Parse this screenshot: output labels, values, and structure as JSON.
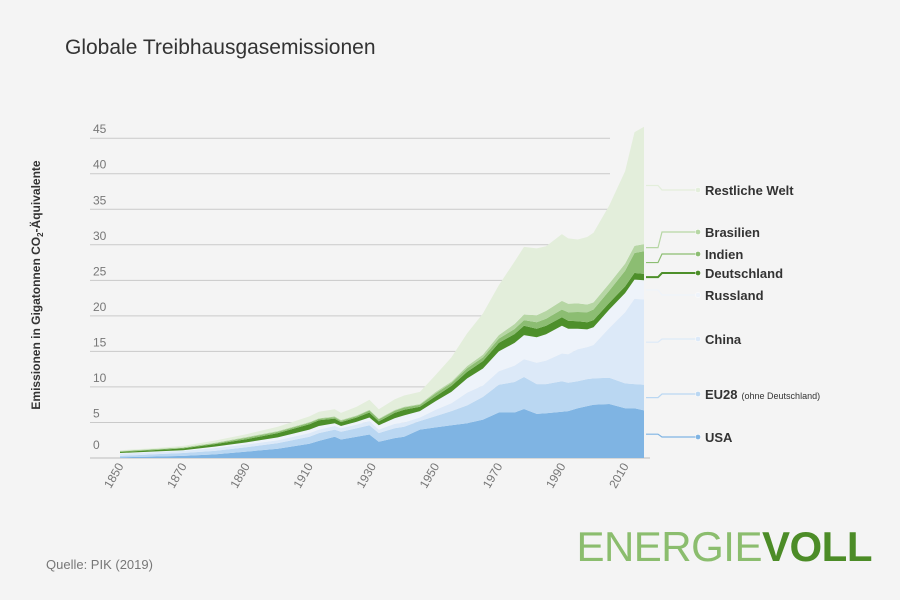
{
  "title": "Globale Treibhausgasemissionen",
  "source": "Quelle: PIK (2019)",
  "brand": {
    "part1": "ENERGIE",
    "part2": "VOLL"
  },
  "chart_data": {
    "type": "area",
    "stacked": true,
    "ylabel_main": "Emissionen in Gigatonnen CO",
    "ylabel_sub": "2",
    "ylabel_tail": "-Äquivalente",
    "ylim": [
      0,
      47
    ],
    "yticks": [
      "0",
      "5",
      "10",
      "15",
      "20",
      "25",
      "30",
      "35",
      "40",
      "45"
    ],
    "yticks_values": [
      0,
      5,
      10,
      15,
      20,
      25,
      30,
      35,
      40,
      45
    ],
    "xlim": [
      1850,
      2016
    ],
    "xticks": [
      "1850",
      "1870",
      "1890",
      "1910",
      "1930",
      "1950",
      "1970",
      "1990",
      "2010"
    ],
    "xticks_values": [
      1850,
      1870,
      1890,
      1910,
      1930,
      1950,
      1970,
      1990,
      2010
    ],
    "x": [
      1850,
      1860,
      1870,
      1880,
      1890,
      1900,
      1910,
      1913,
      1918,
      1920,
      1925,
      1929,
      1932,
      1937,
      1940,
      1945,
      1950,
      1955,
      1960,
      1965,
      1970,
      1975,
      1978,
      1982,
      1985,
      1990,
      1992,
      1995,
      1998,
      2000,
      2005,
      2010,
      2013,
      2016
    ],
    "series": [
      {
        "name": "USA",
        "label": "USA",
        "color": "#7fb4e3",
        "values": [
          0.1,
          0.2,
          0.3,
          0.5,
          0.9,
          1.3,
          2.0,
          2.4,
          3.0,
          2.6,
          3.0,
          3.3,
          2.3,
          2.8,
          3.0,
          4.0,
          4.3,
          4.6,
          4.9,
          5.4,
          6.4,
          6.4,
          6.9,
          6.2,
          6.3,
          6.5,
          6.6,
          7.0,
          7.3,
          7.5,
          7.6,
          7.0,
          7.0,
          6.7
        ]
      },
      {
        "name": "EU28",
        "label": "EU28",
        "label_small": "(ohne Deutschland)",
        "color": "#bad7f2",
        "values": [
          0.2,
          0.3,
          0.4,
          0.5,
          0.6,
          0.8,
          1.0,
          1.1,
          1.0,
          1.1,
          1.2,
          1.3,
          1.2,
          1.4,
          1.4,
          1.2,
          1.6,
          2.0,
          2.5,
          3.2,
          3.9,
          4.3,
          4.5,
          4.2,
          4.1,
          4.3,
          4.0,
          3.8,
          3.8,
          3.7,
          3.7,
          3.5,
          3.4,
          3.6
        ]
      },
      {
        "name": "China",
        "label": "China",
        "color": "#dce9f8",
        "values": [
          0.3,
          0.3,
          0.3,
          0.4,
          0.4,
          0.4,
          0.5,
          0.5,
          0.5,
          0.5,
          0.5,
          0.6,
          0.5,
          0.6,
          0.6,
          0.5,
          0.9,
          1.1,
          1.8,
          1.6,
          1.9,
          2.3,
          2.5,
          3.0,
          3.3,
          3.9,
          4.0,
          4.5,
          4.5,
          4.7,
          7.0,
          10.0,
          12.0,
          12.0
        ]
      },
      {
        "name": "Russland",
        "label": "Russland",
        "color": "#eef3fa",
        "values": [
          0.1,
          0.1,
          0.1,
          0.2,
          0.3,
          0.4,
          0.5,
          0.5,
          0.4,
          0.3,
          0.4,
          0.5,
          0.6,
          0.8,
          1.0,
          0.9,
          1.2,
          1.6,
          2.0,
          2.4,
          2.8,
          3.2,
          3.4,
          3.6,
          3.7,
          3.9,
          3.6,
          2.9,
          2.5,
          2.5,
          2.6,
          2.7,
          2.7,
          2.7
        ]
      },
      {
        "name": "Deutschland",
        "label": "Deutschland",
        "color": "#4d8f2a",
        "values": [
          0.15,
          0.2,
          0.25,
          0.35,
          0.45,
          0.6,
          0.75,
          0.8,
          0.65,
          0.55,
          0.6,
          0.7,
          0.55,
          0.75,
          0.8,
          0.6,
          0.7,
          0.85,
          0.95,
          1.05,
          1.2,
          1.25,
          1.3,
          1.2,
          1.2,
          1.2,
          1.1,
          1.05,
          1.0,
          1.0,
          0.95,
          0.95,
          0.95,
          0.9
        ]
      },
      {
        "name": "Indien",
        "label": "Indien",
        "color": "#8cbd72",
        "values": [
          0.1,
          0.1,
          0.1,
          0.1,
          0.2,
          0.2,
          0.2,
          0.2,
          0.2,
          0.2,
          0.2,
          0.3,
          0.3,
          0.3,
          0.3,
          0.3,
          0.4,
          0.4,
          0.5,
          0.5,
          0.6,
          0.7,
          0.8,
          0.9,
          1.0,
          1.1,
          1.2,
          1.3,
          1.4,
          1.5,
          1.7,
          2.2,
          2.8,
          3.2
        ]
      },
      {
        "name": "Brasilien",
        "label": "Brasilien",
        "color": "#b6d6a4",
        "values": [
          0.05,
          0.05,
          0.05,
          0.1,
          0.1,
          0.1,
          0.1,
          0.1,
          0.1,
          0.1,
          0.1,
          0.1,
          0.1,
          0.1,
          0.1,
          0.1,
          0.2,
          0.2,
          0.3,
          0.4,
          0.5,
          0.7,
          0.8,
          1.0,
          1.1,
          1.2,
          1.2,
          1.2,
          1.1,
          1.0,
          1.0,
          1.0,
          1.0,
          1.0
        ]
      },
      {
        "name": "Restliche Welt",
        "label": "Restliche Welt",
        "color": "#e3eedb",
        "values": [
          0.1,
          0.1,
          0.2,
          0.3,
          0.4,
          0.6,
          0.8,
          0.9,
          1.0,
          1.0,
          1.2,
          1.4,
          1.3,
          1.5,
          1.6,
          1.7,
          2.4,
          3.4,
          4.6,
          5.8,
          7.0,
          8.8,
          9.5,
          9.4,
          9.1,
          9.4,
          9.2,
          9.0,
          9.5,
          9.8,
          11.0,
          13.0,
          16.0,
          16.5
        ]
      }
    ]
  }
}
